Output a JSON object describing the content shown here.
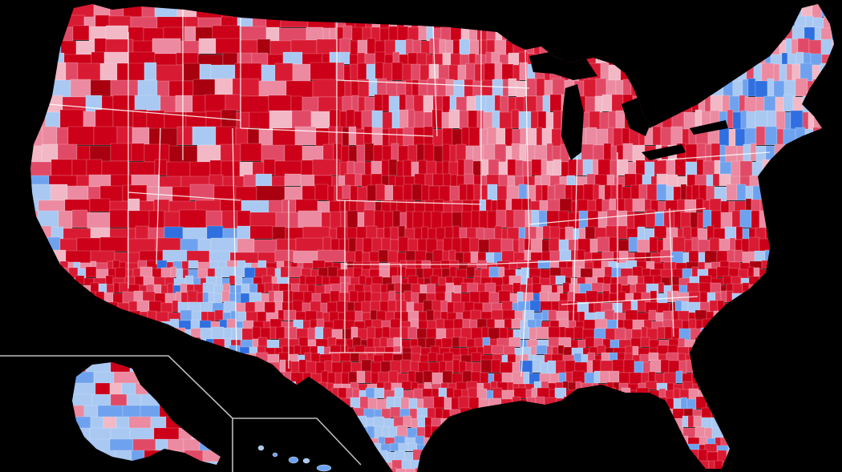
{
  "map": {
    "background": "#000000",
    "palette": {
      "red_dark": "#a8000f",
      "red_strong": "#cc0018",
      "red": "#d91a33",
      "red_mid": "#e14a66",
      "pink": "#eb8aa0",
      "pink_light": "#f2b8c6",
      "blue_light": "#a9c8f2",
      "blue": "#6fa2ee",
      "blue_strong": "#2f6fe0",
      "blue_dark": "#1e4fc4"
    },
    "border_color": "#ffffff",
    "inset_frame_color": "#bdbdbd",
    "regions": [
      {
        "name": "contiguous-us"
      },
      {
        "name": "alaska-inset"
      },
      {
        "name": "hawaii-inset"
      }
    ]
  }
}
